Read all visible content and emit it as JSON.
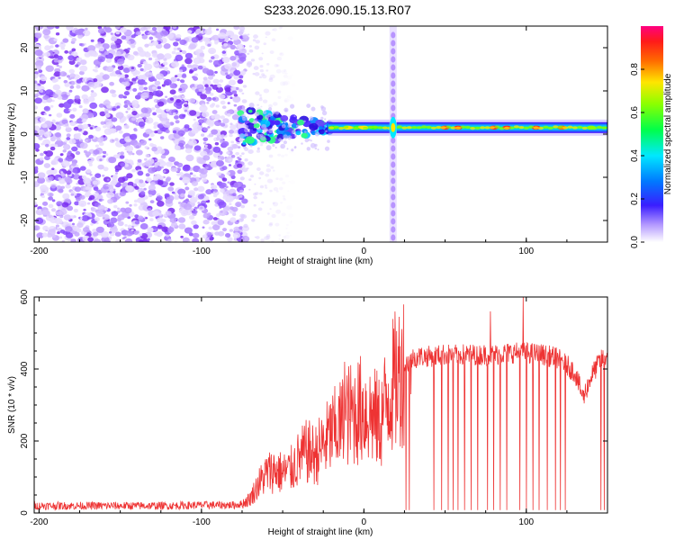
{
  "title": "S233.2026.090.15.13.R07",
  "colors": {
    "speckle": "#8a2be2",
    "snr_line": "#ee3333",
    "frame": "#000000"
  },
  "chart_data": [
    {
      "type": "heatmap",
      "name": "spectrogram",
      "xlabel": "Height of straight line (km)",
      "ylabel": "Frequency (Hz)",
      "xlim": [
        -203,
        150
      ],
      "ylim": [
        -25,
        25
      ],
      "x_ticks": [
        -200,
        -100,
        0,
        100
      ],
      "y_ticks": [
        -20,
        -10,
        0,
        10,
        20
      ],
      "noise_region_x": [
        -203,
        -76
      ],
      "transition_region_x": [
        -76,
        -20
      ],
      "ridge_frequency_hz": 1.5,
      "vertical_streak_x": 18,
      "colorbar": {
        "label": "Normalized spectral amplitude",
        "range": [
          0,
          1
        ],
        "ticks": [
          "0.0",
          "0.2",
          "0.4",
          "0.6",
          "0.8"
        ],
        "tick_values": [
          0.0,
          0.2,
          0.4,
          0.6,
          0.8
        ]
      }
    },
    {
      "type": "line",
      "name": "snr",
      "xlabel": "Height of straight line (km)",
      "ylabel": "SNR (10 * v/v)",
      "xlim": [
        -203,
        150
      ],
      "ylim": [
        0,
        600
      ],
      "x_ticks": [
        -200,
        -100,
        0,
        100
      ],
      "y_ticks": [
        0,
        200,
        400,
        600
      ],
      "baseline_snr": 20,
      "x": [
        -203,
        -180,
        -160,
        -140,
        -120,
        -100,
        -90,
        -80,
        -75,
        -70,
        -65,
        -60,
        -55,
        -50,
        -45,
        -40,
        -35,
        -30,
        -25,
        -20,
        -15,
        -10,
        -5,
        0,
        5,
        10,
        15,
        20,
        25,
        30,
        35,
        40,
        50,
        60,
        70,
        80,
        90,
        100,
        110,
        120,
        125,
        130,
        135,
        140,
        145,
        150
      ],
      "y": [
        20,
        20,
        20,
        20,
        20,
        22,
        22,
        22,
        25,
        40,
        80,
        110,
        120,
        110,
        120,
        150,
        170,
        160,
        190,
        220,
        240,
        270,
        280,
        290,
        270,
        250,
        330,
        370,
        410,
        430,
        435,
        435,
        440,
        440,
        440,
        440,
        445,
        445,
        440,
        430,
        410,
        390,
        320,
        380,
        420,
        440
      ],
      "dropouts_x": [
        26,
        28,
        43,
        48,
        52,
        55,
        58,
        62,
        66,
        70,
        76,
        80,
        84,
        88,
        96,
        100,
        104,
        108,
        113,
        118,
        121,
        124,
        146,
        148
      ],
      "peaks": [
        {
          "x": 98,
          "y": 600
        },
        {
          "x": 78,
          "y": 560
        },
        {
          "x": -12,
          "y": 420
        },
        {
          "x": 29,
          "y": 330
        }
      ]
    }
  ]
}
